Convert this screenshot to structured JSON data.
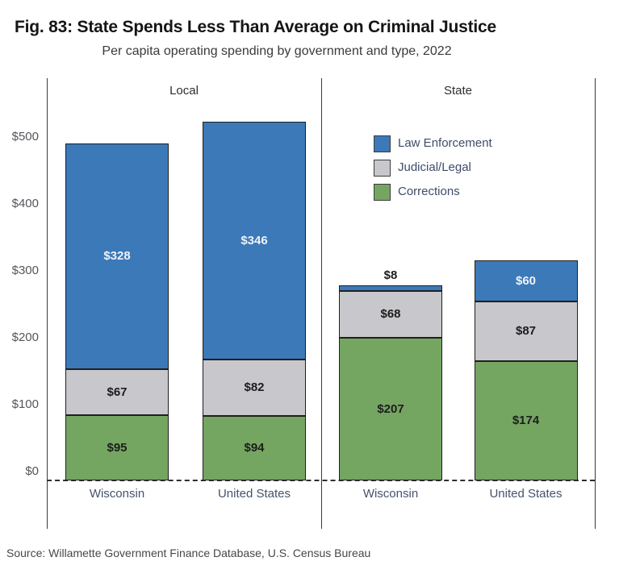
{
  "figure": {
    "title": "Fig. 83: State Spends Less Than Average on Criminal Justice",
    "subtitle": "Per capita operating spending by government and type, 2022",
    "source": "Source: Willamette Government Finance Database, U.S. Census Bureau"
  },
  "colors": {
    "law_enforcement": "#3C79B8",
    "judicial_legal": "#C8C8CC",
    "corrections": "#74A662",
    "bar_border": "#1F1F1F",
    "axis_line": "#3B3B3B",
    "dashed_baseline": "#2F2F2F",
    "label_light": "#EEF2F8",
    "label_dark": "#1D1D1D",
    "category_text": "#45536D",
    "tick_text": "#54555A",
    "panel_header_text": "#2E2E2E",
    "legend_text": "#3F4C68"
  },
  "chart_data": {
    "type": "bar",
    "stacked": true,
    "title": "Fig. 83: State Spends Less Than Average on Criminal Justice",
    "subtitle": "Per capita operating spending by government and type, 2022",
    "source": "Source: Willamette Government Finance Database, U.S. Census Bureau",
    "grid": false,
    "panels": [
      {
        "label": "Local",
        "categories": [
          "Wisconsin",
          "United States"
        ]
      },
      {
        "label": "State",
        "categories": [
          "Wisconsin",
          "United States"
        ]
      }
    ],
    "categories": [
      "Wisconsin",
      "United States",
      "Wisconsin",
      "United States"
    ],
    "series": [
      {
        "name": "Corrections",
        "color": "#74A662",
        "label_style": "dark",
        "values": [
          95,
          94,
          207,
          174
        ]
      },
      {
        "name": "Judicial/Legal",
        "color": "#C8C8CC",
        "label_style": "dark",
        "values": [
          67,
          82,
          68,
          87
        ]
      },
      {
        "name": "Law Enforcement",
        "color": "#3C79B8",
        "label_style": "light",
        "values": [
          328,
          346,
          8,
          60
        ]
      }
    ],
    "data_labels": [
      [
        "$95",
        "$94",
        "$207",
        "$174"
      ],
      [
        "$67",
        "$82",
        "$68",
        "$87"
      ],
      [
        "$328",
        "$346",
        "$8",
        "$60"
      ]
    ],
    "stack_totals": [
      490,
      522,
      283,
      321
    ],
    "y_ticks": [
      0,
      100,
      200,
      300,
      400,
      500
    ],
    "y_tick_labels": [
      "$0",
      "$100",
      "$200",
      "$300",
      "$400",
      "$500"
    ],
    "ylim": [
      0,
      590
    ],
    "legend_position": "inside top of State panel",
    "legend": [
      {
        "label": "Law Enforcement",
        "color": "#3C79B8"
      },
      {
        "label": "Judicial/Legal",
        "color": "#C8C8CC"
      },
      {
        "label": "Corrections",
        "color": "#74A662"
      }
    ]
  }
}
